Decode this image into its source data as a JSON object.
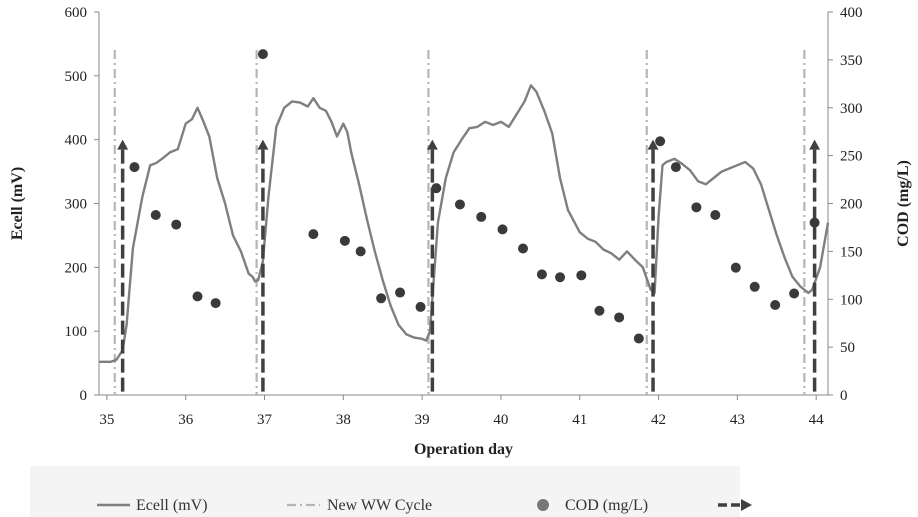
{
  "colors": {
    "ecell": "#7f7f7f",
    "cycle": "#b5b5b5",
    "cod": "#3a3a3a",
    "arrow": "#404040",
    "axis": "#888888",
    "legend_bg": "#f4f4f4"
  },
  "chart_data": {
    "type": "line",
    "xlabel": "Operation day",
    "ylabel_left": "Ecell (mV)",
    "ylabel_right": "COD (mg/L)",
    "xlim": [
      34.9,
      44.15
    ],
    "ylim_left": [
      0,
      600
    ],
    "ylim_right": [
      0,
      400
    ],
    "x_ticks": [
      "35",
      "36",
      "37",
      "38",
      "39",
      "40",
      "41",
      "42",
      "43",
      "44"
    ],
    "y_ticks_left": [
      "0",
      "100",
      "200",
      "300",
      "400",
      "500",
      "600"
    ],
    "y_ticks_right": [
      "0",
      "50",
      "100",
      "150",
      "200",
      "250",
      "300",
      "350",
      "400"
    ],
    "grid": false,
    "legend_position": "bottom",
    "legend": [
      {
        "label": "Ecell (mV)",
        "kind": "line"
      },
      {
        "label": "New WW Cycle",
        "kind": "dashdot"
      },
      {
        "label": "COD (mg/L)",
        "kind": "marker"
      },
      {
        "label": "",
        "kind": "arrow"
      }
    ],
    "series": [
      {
        "name": "Ecell (mV)",
        "axis": "left",
        "x": [
          34.9,
          35.05,
          35.12,
          35.2,
          35.25,
          35.33,
          35.45,
          35.55,
          35.62,
          35.7,
          35.8,
          35.9,
          36.0,
          36.08,
          36.15,
          36.22,
          36.3,
          36.4,
          36.5,
          36.6,
          36.7,
          36.8,
          36.85,
          36.88,
          36.92,
          36.98,
          37.05,
          37.15,
          37.25,
          37.35,
          37.45,
          37.55,
          37.62,
          37.7,
          37.78,
          37.85,
          37.92,
          38.0,
          38.05,
          38.1,
          38.2,
          38.3,
          38.4,
          38.5,
          38.6,
          38.7,
          38.8,
          38.9,
          39.0,
          39.05,
          39.1,
          39.2,
          39.3,
          39.4,
          39.5,
          39.6,
          39.7,
          39.8,
          39.9,
          40.0,
          40.1,
          40.2,
          40.3,
          40.38,
          40.45,
          40.55,
          40.65,
          40.75,
          40.85,
          41.0,
          41.1,
          41.2,
          41.3,
          41.4,
          41.5,
          41.6,
          41.7,
          41.8,
          41.9,
          41.95,
          42.0,
          42.05,
          42.1,
          42.2,
          42.3,
          42.4,
          42.5,
          42.6,
          42.7,
          42.8,
          42.9,
          43.0,
          43.1,
          43.2,
          43.3,
          43.4,
          43.5,
          43.6,
          43.7,
          43.8,
          43.9,
          43.95,
          44.05,
          44.15
        ],
        "values": [
          52,
          52,
          55,
          70,
          110,
          230,
          310,
          360,
          363,
          370,
          380,
          385,
          425,
          432,
          450,
          430,
          405,
          340,
          300,
          250,
          225,
          190,
          185,
          178,
          180,
          210,
          310,
          420,
          450,
          460,
          458,
          452,
          465,
          450,
          445,
          428,
          405,
          425,
          412,
          380,
          330,
          275,
          225,
          180,
          140,
          110,
          95,
          90,
          88,
          85,
          100,
          270,
          340,
          380,
          400,
          418,
          420,
          428,
          423,
          428,
          420,
          440,
          460,
          485,
          475,
          445,
          410,
          340,
          290,
          255,
          245,
          240,
          228,
          222,
          212,
          225,
          212,
          200,
          165,
          160,
          280,
          360,
          365,
          370,
          362,
          352,
          335,
          330,
          340,
          350,
          355,
          360,
          365,
          355,
          330,
          290,
          250,
          215,
          185,
          170,
          160,
          165,
          200,
          270
        ]
      },
      {
        "name": "COD (mg/L)",
        "axis": "right",
        "x": [
          35.35,
          35.62,
          35.88,
          36.15,
          36.38,
          36.98,
          37.62,
          38.02,
          38.22,
          38.48,
          38.72,
          38.98,
          39.18,
          39.48,
          39.75,
          40.02,
          40.28,
          40.52,
          40.75,
          41.02,
          41.25,
          41.5,
          41.75,
          42.02,
          42.22,
          42.48,
          42.72,
          42.98,
          43.22,
          43.48,
          43.72,
          43.98
        ],
        "values": [
          238,
          188,
          178,
          103,
          96,
          356,
          168,
          161,
          150,
          101,
          107,
          92,
          216,
          199,
          186,
          173,
          153,
          126,
          123,
          125,
          88,
          81,
          59,
          265,
          238,
          196,
          188,
          133,
          113,
          94,
          106,
          180
        ]
      }
    ],
    "new_ww_cycle_days": [
      35.1,
      36.9,
      39.08,
      41.85,
      43.85
    ],
    "arrow_days": [
      35.2,
      36.98,
      39.13,
      41.93,
      43.98
    ],
    "arrow_top_value_left": 400
  }
}
